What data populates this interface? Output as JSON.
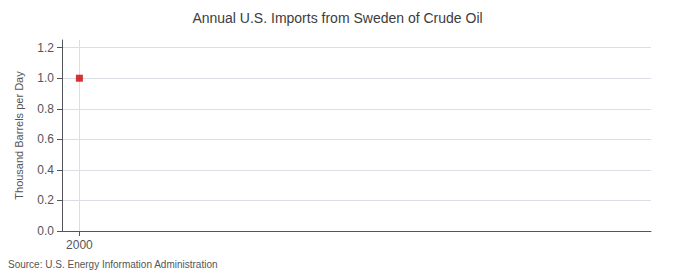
{
  "chart_data": {
    "type": "scatter",
    "title": "Annual U.S. Imports from Sweden of Crude Oil",
    "ylabel": "Thousand Barrels per Day",
    "annotation": "Source: U.S. Energy Information Administration",
    "x": [
      2000
    ],
    "values": [
      1.0
    ],
    "color": "#cc0000",
    "marker": "square",
    "xlim": [
      1999.3,
      2023
    ],
    "xticks": [
      2000
    ],
    "ylim": [
      0.0,
      1.25
    ],
    "yticks": [
      {
        "value": 0.0,
        "label": "0.0"
      },
      0.2,
      0.4,
      0.6,
      0.8,
      {
        "value": 1.0,
        "label": "1.0"
      },
      1.2
    ],
    "grid": true
  }
}
